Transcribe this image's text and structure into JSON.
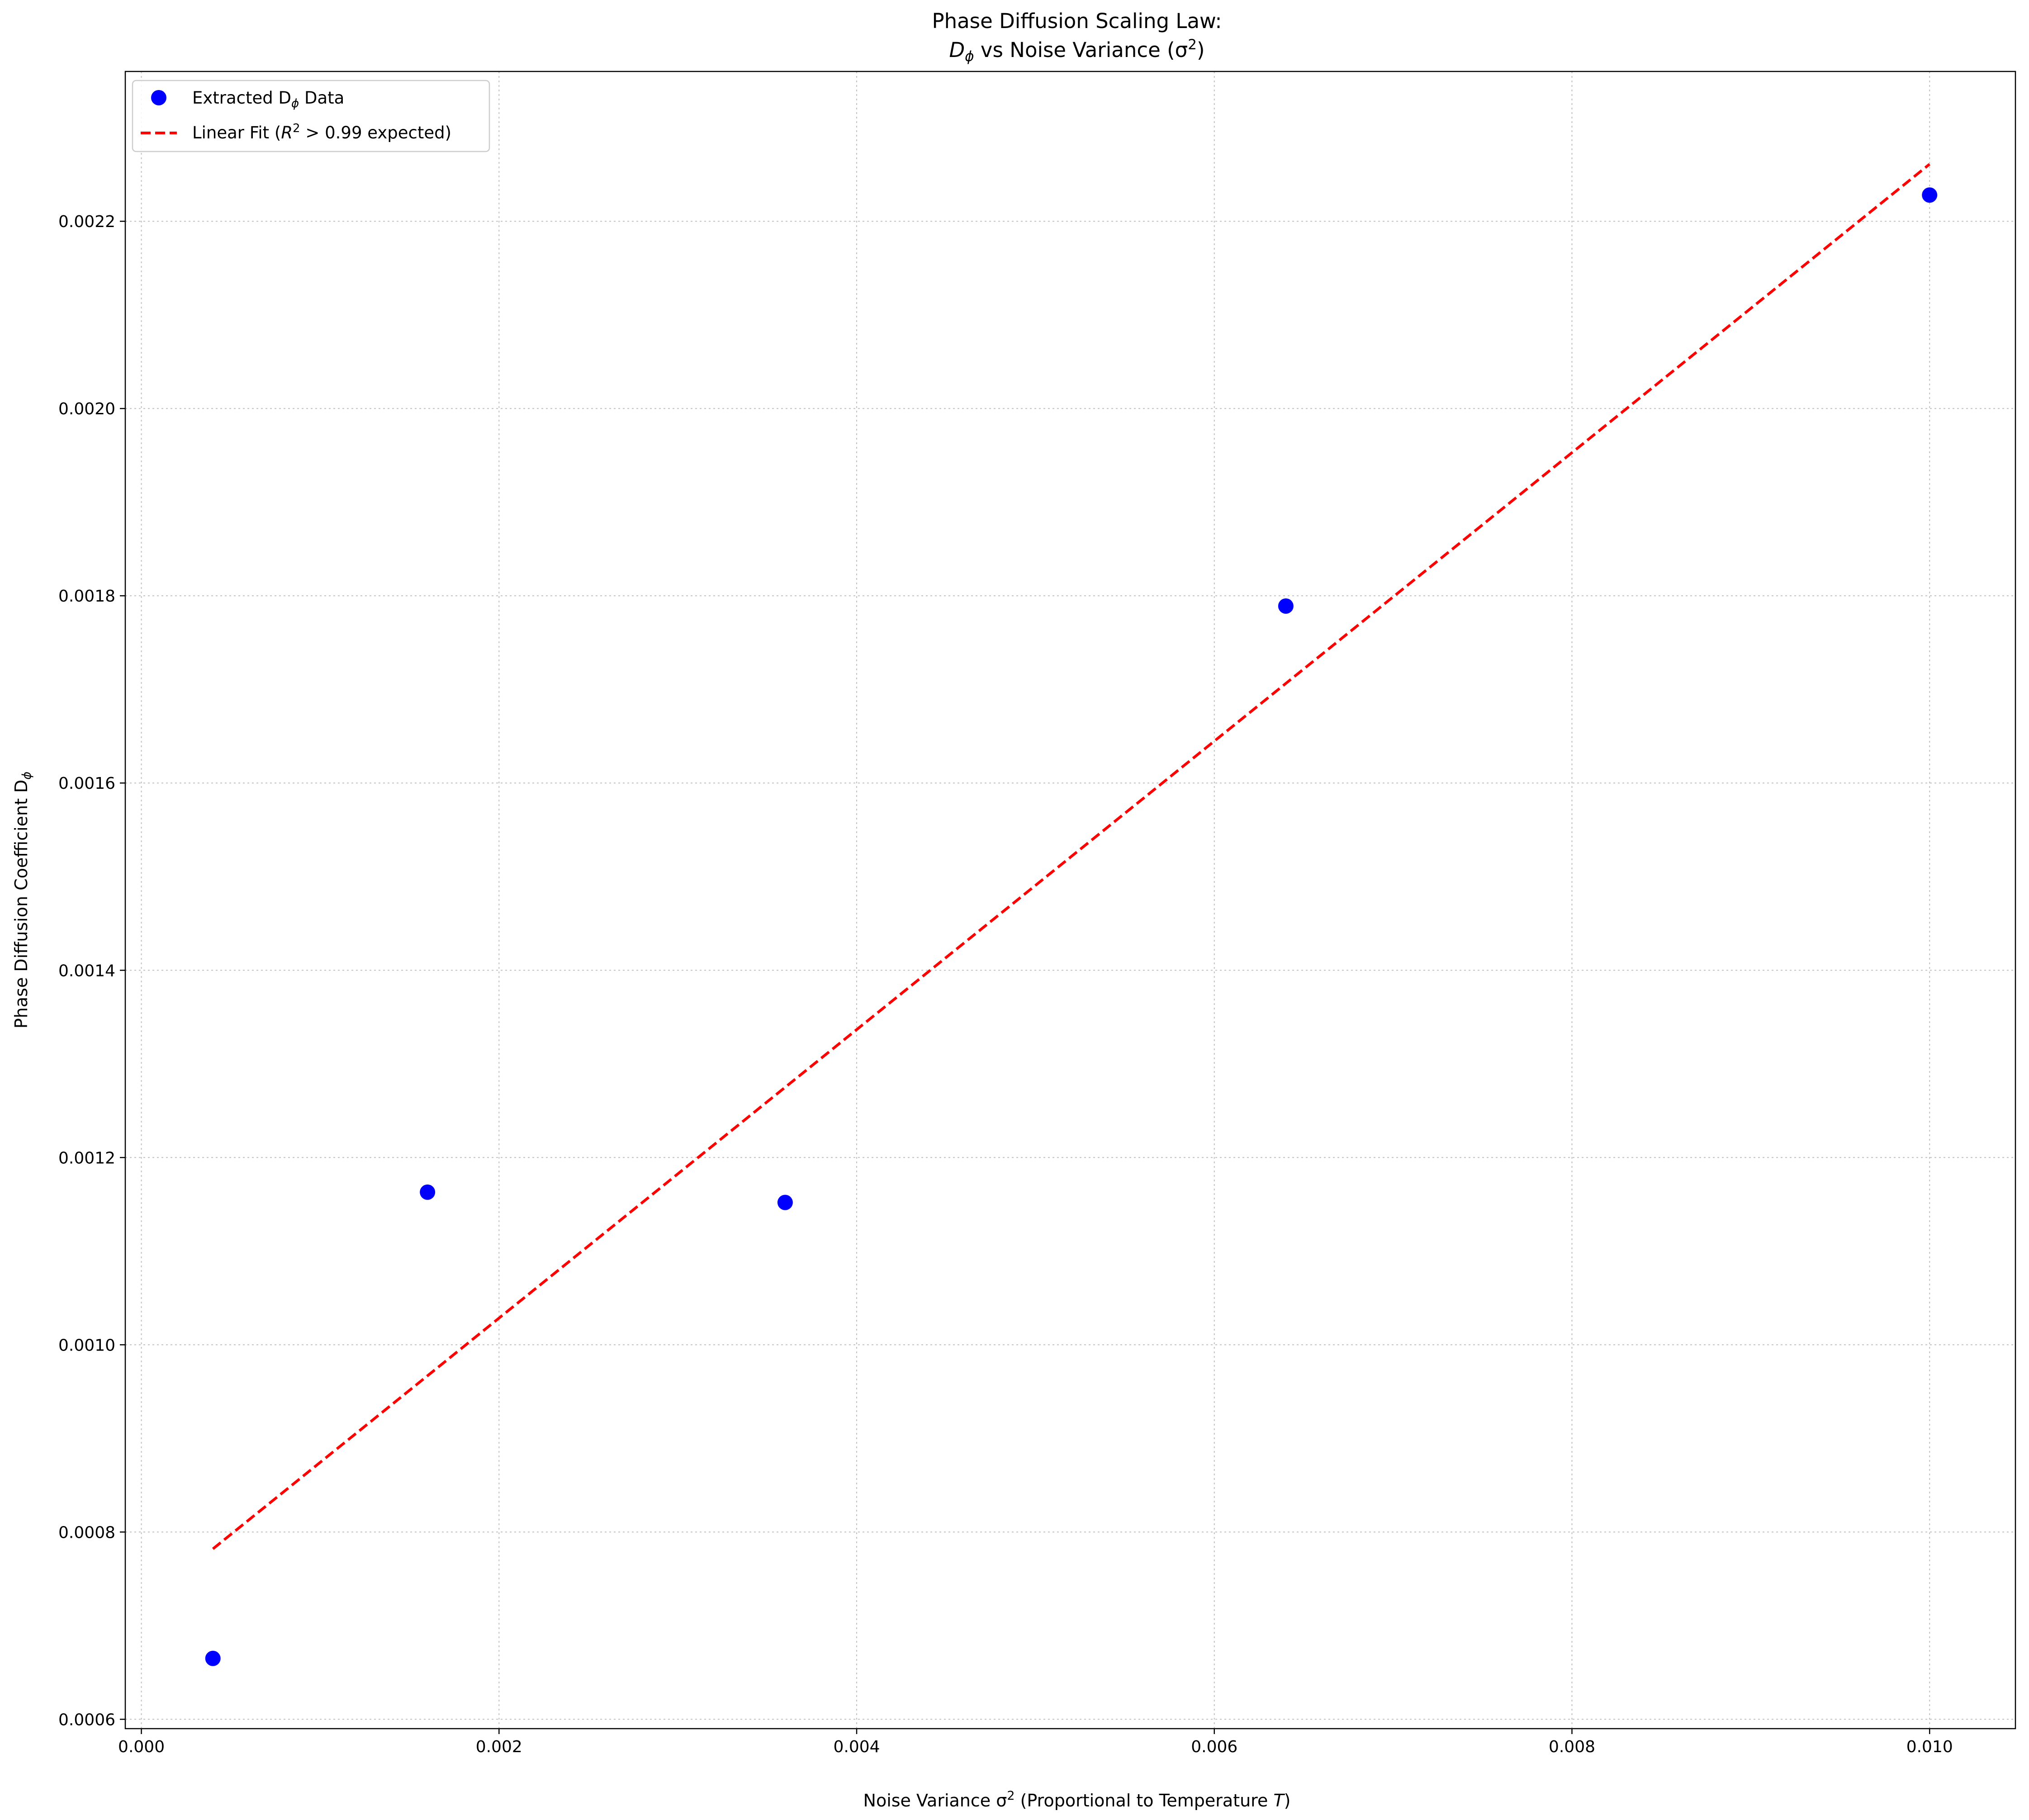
{
  "chart_data": {
    "type": "scatter",
    "title_line1": "Phase Diffusion Scaling Law:",
    "title_line2_prefix": "D",
    "title_line2_sub": "ϕ",
    "title_line2_middle": " vs Noise Variance (σ",
    "title_line2_sup": "2",
    "title_line2_suffix": ")",
    "xlabel_prefix": "Noise Variance σ",
    "xlabel_sup": "2",
    "xlabel_middle": " (Proportional to Temperature ",
    "xlabel_var": "T",
    "xlabel_suffix": ")",
    "ylabel_prefix": "Phase Diffusion Coefficient D",
    "ylabel_sub": "ϕ",
    "xlim": [
      -9e-05,
      0.01048
    ],
    "ylim": [
      0.00059,
      0.00236
    ],
    "x_ticks": [
      0.0,
      0.002,
      0.004,
      0.006,
      0.008,
      0.01
    ],
    "x_tick_labels": [
      "0.000",
      "0.002",
      "0.004",
      "0.006",
      "0.008",
      "0.010"
    ],
    "y_ticks": [
      0.0006,
      0.0008,
      0.001,
      0.0012,
      0.0014,
      0.0016,
      0.0018,
      0.002,
      0.0022
    ],
    "y_tick_labels": [
      "0.0006",
      "0.0008",
      "0.0010",
      "0.0012",
      "0.0014",
      "0.0016",
      "0.0018",
      "0.0020",
      "0.0022"
    ],
    "grid": true,
    "legend_position": "top-left",
    "series": [
      {
        "name": "Extracted Dϕ Data",
        "legend_prefix": "Extracted D",
        "legend_sub": "ϕ",
        "legend_suffix": " Data",
        "kind": "scatter",
        "color": "#0000ff",
        "x": [
          0.0004,
          0.0016,
          0.0036,
          0.0064,
          0.01
        ],
        "y": [
          0.000665,
          0.001163,
          0.001152,
          0.001789,
          0.002228
        ]
      },
      {
        "name": "Linear Fit (R2 > 0.99 expected)",
        "legend_prefix": "Linear Fit (",
        "legend_var": "R",
        "legend_sup": "2",
        "legend_suffix": " > 0.99 expected)",
        "kind": "line",
        "style": "dashed",
        "color": "#ff0000",
        "x": [
          0.0004,
          0.01
        ],
        "y": [
          0.000782,
          0.002261
        ]
      }
    ]
  }
}
